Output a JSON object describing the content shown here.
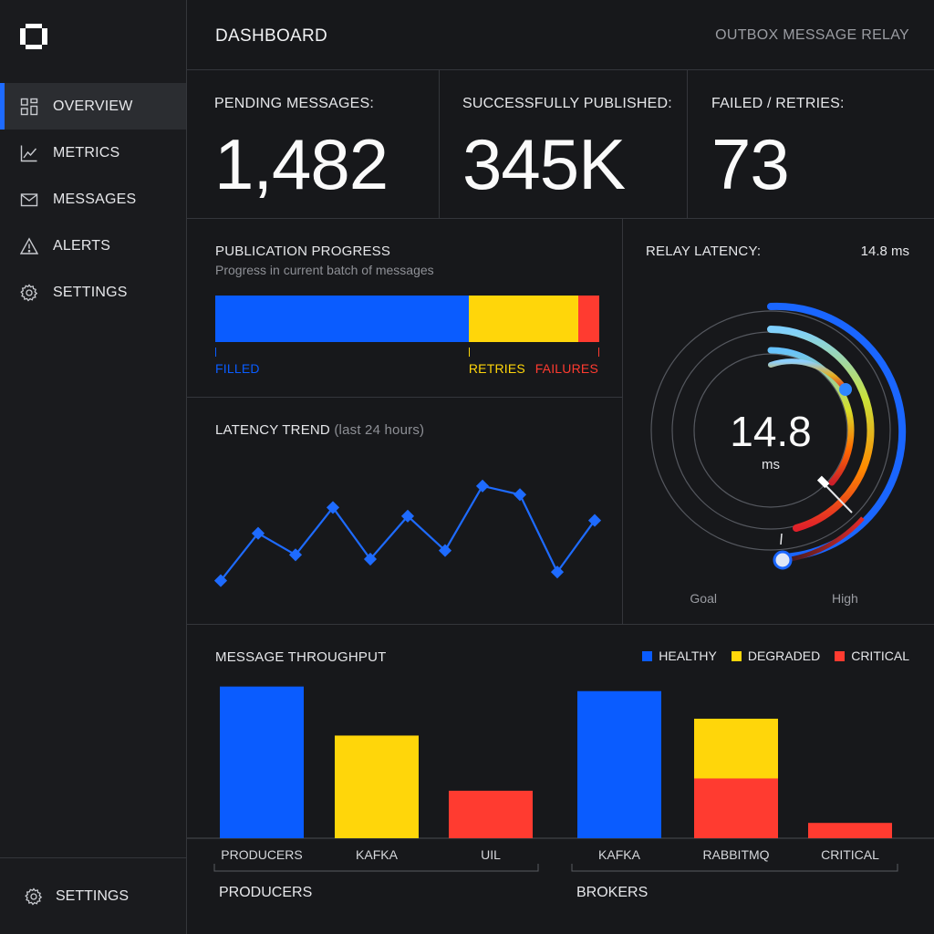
{
  "header": {
    "title": "DASHBOARD",
    "app_name": "OUTBOX MESSAGE RELAY"
  },
  "sidebar": {
    "logo_icon": "logo-icon",
    "items": [
      {
        "label": "OVERVIEW",
        "icon": "grid-icon",
        "active": true
      },
      {
        "label": "METRICS",
        "icon": "line-chart-icon",
        "active": false
      },
      {
        "label": "MESSAGES",
        "icon": "envelope-icon",
        "active": false
      },
      {
        "label": "ALERTS",
        "icon": "warning-icon",
        "active": false
      },
      {
        "label": "SETTINGS",
        "icon": "gear-icon",
        "active": false
      }
    ],
    "footer": {
      "label": "SETTINGS",
      "icon": "gear-icon"
    }
  },
  "kpis": [
    {
      "label": "PENDING MESSAGES:",
      "value": "1,482"
    },
    {
      "label": "SUCCESSFULLY PUBLISHED:",
      "value": "345K"
    },
    {
      "label": "FAILED / RETRIES:",
      "value": "73"
    }
  ],
  "colors": {
    "blue": "#0a5cff",
    "yellow": "#ffd60a",
    "red": "#ff3b30",
    "background": "#17181b",
    "divider": "#34363b"
  },
  "progress": {
    "title": "PUBLICATION PROGRESS",
    "subtitle": "Progress in current batch of messages",
    "segments": [
      {
        "label": "FILLED",
        "fraction": 0.66,
        "color": "#0a5cff"
      },
      {
        "label": "RETRIES",
        "fraction": 0.285,
        "color": "#ffd60a"
      },
      {
        "label": "FAILURES",
        "fraction": 0.055,
        "color": "#ff3b30"
      }
    ]
  },
  "latency": {
    "label": "RELAY LATENCY:",
    "value_small": "14.8 ms",
    "value": "14.8",
    "unit": "ms",
    "goal_label": "Goal",
    "high_label": "High"
  },
  "chart_data": [
    {
      "type": "line",
      "title": "LATENCY TREND",
      "subtitle": "(last 24 hours)",
      "values": [
        2,
        13,
        8,
        19,
        7,
        17,
        9,
        24,
        22,
        4,
        16
      ],
      "ylim": [
        0,
        28
      ],
      "grid": false,
      "color": "#1e6bff"
    },
    {
      "type": "bar",
      "title": "MESSAGE THROUGHPUT",
      "legend": [
        "HEALTHY",
        "DEGRADED",
        "CRITICAL"
      ],
      "legend_position": "top-right",
      "ylim": [
        0,
        100
      ],
      "groups": [
        {
          "name": "PRODUCERS",
          "bars": [
            {
              "label": "PRODUCERS",
              "segments": [
                {
                  "status": "HEALTHY",
                  "value": 99
                }
              ]
            },
            {
              "label": "KAFKA",
              "segments": [
                {
                  "status": "DEGRADED",
                  "value": 67
                }
              ]
            },
            {
              "label": "UIL",
              "segments": [
                {
                  "status": "CRITICAL",
                  "value": 31
                }
              ]
            }
          ]
        },
        {
          "name": "BROKERS",
          "bars": [
            {
              "label": "KAFKA",
              "segments": [
                {
                  "status": "HEALTHY",
                  "value": 96
                }
              ]
            },
            {
              "label": "RABBITMQ",
              "segments": [
                {
                  "status": "CRITICAL",
                  "value": 39
                },
                {
                  "status": "DEGRADED",
                  "value": 39
                }
              ]
            },
            {
              "label": "CRITICAL",
              "segments": [
                {
                  "status": "CRITICAL",
                  "value": 10
                }
              ]
            }
          ]
        }
      ]
    }
  ]
}
